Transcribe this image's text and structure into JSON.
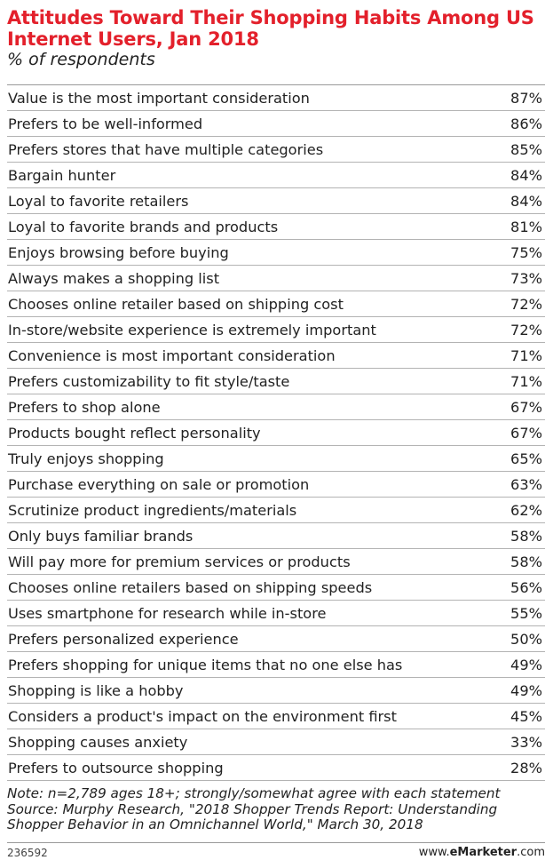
{
  "chart_data": {
    "type": "table",
    "title": "Attitudes Toward Their Shopping Habits Among US Internet Users, Jan 2018",
    "subtitle": "% of respondents",
    "rows": [
      {
        "label": "Value is the most important consideration",
        "value": "87%"
      },
      {
        "label": "Prefers to be well-informed",
        "value": "86%"
      },
      {
        "label": "Prefers stores that have multiple categories",
        "value": "85%"
      },
      {
        "label": "Bargain hunter",
        "value": "84%"
      },
      {
        "label": "Loyal to favorite retailers",
        "value": "84%"
      },
      {
        "label": "Loyal to favorite brands and products",
        "value": "81%"
      },
      {
        "label": "Enjoys browsing before buying",
        "value": "75%"
      },
      {
        "label": "Always makes a shopping list",
        "value": "73%"
      },
      {
        "label": "Chooses online retailer based on shipping cost",
        "value": "72%"
      },
      {
        "label": "In-store/website experience is extremely important",
        "value": "72%"
      },
      {
        "label": "Convenience is most important consideration",
        "value": "71%"
      },
      {
        "label": "Prefers customizability to fit style/taste",
        "value": "71%"
      },
      {
        "label": "Prefers to shop alone",
        "value": "67%"
      },
      {
        "label": "Products bought reflect personality",
        "value": "67%"
      },
      {
        "label": "Truly enjoys shopping",
        "value": "65%"
      },
      {
        "label": "Purchase everything on sale or promotion",
        "value": "63%"
      },
      {
        "label": "Scrutinize product ingredients/materials",
        "value": "62%"
      },
      {
        "label": "Only buys familiar brands",
        "value": "58%"
      },
      {
        "label": "Will pay more for premium services or products",
        "value": "58%"
      },
      {
        "label": "Chooses online retailers based on shipping speeds",
        "value": "56%"
      },
      {
        "label": "Uses smartphone for research while in-store",
        "value": "55%"
      },
      {
        "label": "Prefers personalized experience",
        "value": "50%"
      },
      {
        "label": "Prefers shopping for unique items that no one else has",
        "value": "49%"
      },
      {
        "label": "Shopping is like a hobby",
        "value": "49%"
      },
      {
        "label": "Considers a product's impact on the environment first",
        "value": "45%"
      },
      {
        "label": "Shopping causes anxiety",
        "value": "33%"
      },
      {
        "label": "Prefers to outsource shopping",
        "value": "28%"
      }
    ],
    "note_lines": [
      "Note: n=2,789 ages 18+; strongly/somewhat agree with each statement",
      "Source: Murphy Research, \"2018 Shopper Trends Report: Understanding",
      "Shopper Behavior in an Omnichannel World,\" March 30, 2018"
    ],
    "footer": {
      "id": "236592",
      "brand_prefix": "www.",
      "brand_name": "eMarketer",
      "brand_suffix": ".com"
    }
  },
  "colors": {
    "title": "#e3202b",
    "text": "#222222",
    "rule": "#b3b3b3"
  }
}
